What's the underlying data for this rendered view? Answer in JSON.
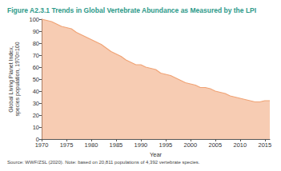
{
  "chart_data": {
    "type": "area",
    "title": "Figure A2.3.1 Trends in Global Vertebrate Abundance as Measured by the LPI",
    "y_label": "Global Living Planet Index,\nspecies population, 1970=100",
    "x_label": "Year",
    "source_note": "Source: WWF/ZSL (2020). Note: based on 20,811 populations of 4,392 vertebrate species.",
    "x": [
      1970,
      1971,
      1972,
      1973,
      1974,
      1975,
      1976,
      1977,
      1978,
      1979,
      1980,
      1981,
      1982,
      1983,
      1984,
      1985,
      1986,
      1987,
      1988,
      1989,
      1990,
      1991,
      1992,
      1993,
      1994,
      1995,
      1996,
      1997,
      1998,
      1999,
      2000,
      2001,
      2002,
      2003,
      2004,
      2005,
      2006,
      2007,
      2008,
      2009,
      2010,
      2011,
      2012,
      2013,
      2014,
      2015,
      2016
    ],
    "values": [
      100,
      99,
      98,
      96,
      94,
      93,
      92,
      89,
      87,
      85,
      83,
      81,
      79,
      76,
      73,
      71,
      69,
      66,
      64,
      62,
      62,
      60,
      59,
      58,
      55,
      54,
      53,
      51,
      49,
      47,
      46,
      45,
      43,
      43,
      42,
      40,
      39,
      38,
      36,
      35,
      34,
      33,
      32,
      31,
      31,
      32,
      32
    ],
    "color": "#f0a375",
    "xlim": [
      1970,
      2016
    ],
    "xticks": [
      1970,
      1975,
      1980,
      1985,
      1990,
      1995,
      2000,
      2005,
      2010,
      2015
    ],
    "ylim": [
      0,
      100
    ],
    "yticks": [
      0,
      10,
      20,
      30,
      40,
      50,
      60,
      70,
      80,
      90,
      100
    ],
    "grid": false
  }
}
